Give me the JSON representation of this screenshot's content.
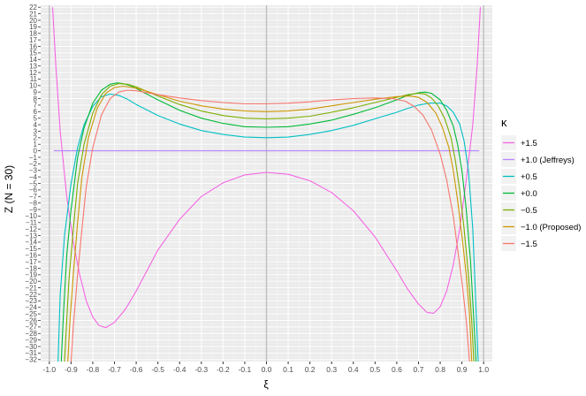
{
  "chart_data": {
    "type": "line",
    "xlabel": "ξ",
    "ylabel": "Z  (N = 30)",
    "xlim": [
      -1.04,
      1.04
    ],
    "ylim": [
      -32.3,
      22.3
    ],
    "xticks": [
      "-1.0",
      "-0.9",
      "-0.8",
      "-0.7",
      "-0.6",
      "-0.5",
      "-0.4",
      "-0.3",
      "-0.2",
      "-0.1",
      "0.0",
      "0.1",
      "0.2",
      "0.3",
      "0.4",
      "0.5",
      "0.6",
      "0.7",
      "0.8",
      "0.9",
      "1.0"
    ],
    "ytick_min": -32,
    "ytick_max": 22,
    "grid": true,
    "reference_lines": {
      "x": [
        -1.0,
        0.0,
        1.0
      ],
      "y": [
        0
      ]
    },
    "legend": {
      "title": "κ",
      "position": "right"
    },
    "series": [
      {
        "name": "+1.5",
        "color": "#F564E3",
        "points": [
          [
            -0.985,
            22
          ],
          [
            -0.97,
            13
          ],
          [
            -0.95,
            3
          ],
          [
            -0.92,
            -7
          ],
          [
            -0.89,
            -14
          ],
          [
            -0.86,
            -19
          ],
          [
            -0.83,
            -23
          ],
          [
            -0.8,
            -25.5
          ],
          [
            -0.77,
            -26.8
          ],
          [
            -0.74,
            -27.1
          ],
          [
            -0.7,
            -26.3
          ],
          [
            -0.65,
            -24.3
          ],
          [
            -0.6,
            -21.5
          ],
          [
            -0.5,
            -15.2
          ],
          [
            -0.4,
            -10.5
          ],
          [
            -0.3,
            -7.0
          ],
          [
            -0.2,
            -4.9
          ],
          [
            -0.1,
            -3.7
          ],
          [
            0.0,
            -3.3
          ],
          [
            0.1,
            -3.6
          ],
          [
            0.2,
            -4.6
          ],
          [
            0.3,
            -6.4
          ],
          [
            0.4,
            -9.2
          ],
          [
            0.5,
            -13.2
          ],
          [
            0.6,
            -18.4
          ],
          [
            0.65,
            -21.2
          ],
          [
            0.7,
            -23.5
          ],
          [
            0.74,
            -24.8
          ],
          [
            0.77,
            -24.9
          ],
          [
            0.8,
            -23.9
          ],
          [
            0.83,
            -21.5
          ],
          [
            0.86,
            -17.5
          ],
          [
            0.89,
            -12
          ],
          [
            0.92,
            -4.5
          ],
          [
            0.95,
            4
          ],
          [
            0.97,
            13
          ],
          [
            0.985,
            22
          ]
        ]
      },
      {
        "name": "+1.0 (Jeffreys)",
        "color": "#B983FF",
        "points": [
          [
            -0.98,
            0
          ],
          [
            0.98,
            0
          ]
        ]
      },
      {
        "name": "+0.5",
        "color": "#00BFC4",
        "points": [
          [
            -0.96,
            -32.3
          ],
          [
            -0.95,
            -22
          ],
          [
            -0.93,
            -13
          ],
          [
            -0.9,
            -5
          ],
          [
            -0.87,
            0.5
          ],
          [
            -0.84,
            4
          ],
          [
            -0.8,
            6.8
          ],
          [
            -0.76,
            8.3
          ],
          [
            -0.72,
            8.7
          ],
          [
            -0.68,
            8.5
          ],
          [
            -0.64,
            7.9
          ],
          [
            -0.6,
            7.1
          ],
          [
            -0.5,
            5.4
          ],
          [
            -0.4,
            4.1
          ],
          [
            -0.3,
            3.1
          ],
          [
            -0.2,
            2.5
          ],
          [
            -0.1,
            2.1
          ],
          [
            0.0,
            2.0
          ],
          [
            0.1,
            2.1
          ],
          [
            0.2,
            2.5
          ],
          [
            0.3,
            3.1
          ],
          [
            0.4,
            3.9
          ],
          [
            0.5,
            4.9
          ],
          [
            0.6,
            5.9
          ],
          [
            0.65,
            6.5
          ],
          [
            0.7,
            7.0
          ],
          [
            0.75,
            7.3
          ],
          [
            0.8,
            7.3
          ],
          [
            0.83,
            6.9
          ],
          [
            0.86,
            5.9
          ],
          [
            0.89,
            4.1
          ],
          [
            0.91,
            1.5
          ],
          [
            0.93,
            -3
          ],
          [
            0.95,
            -12
          ],
          [
            0.96,
            -20
          ],
          [
            0.975,
            -32.3
          ]
        ]
      },
      {
        "name": "+0.0",
        "color": "#00BA38",
        "points": [
          [
            -0.945,
            -32.3
          ],
          [
            -0.935,
            -25
          ],
          [
            -0.92,
            -16
          ],
          [
            -0.9,
            -9
          ],
          [
            -0.87,
            -1
          ],
          [
            -0.84,
            3.5
          ],
          [
            -0.8,
            7.3
          ],
          [
            -0.76,
            9.3
          ],
          [
            -0.72,
            10.2
          ],
          [
            -0.69,
            10.4
          ],
          [
            -0.66,
            10.3
          ],
          [
            -0.62,
            9.9
          ],
          [
            -0.58,
            9.2
          ],
          [
            -0.5,
            7.8
          ],
          [
            -0.4,
            6.2
          ],
          [
            -0.3,
            5.0
          ],
          [
            -0.2,
            4.2
          ],
          [
            -0.1,
            3.7
          ],
          [
            0.0,
            3.6
          ],
          [
            0.1,
            3.7
          ],
          [
            0.2,
            4.1
          ],
          [
            0.3,
            4.7
          ],
          [
            0.4,
            5.6
          ],
          [
            0.5,
            6.6
          ],
          [
            0.6,
            7.8
          ],
          [
            0.65,
            8.5
          ],
          [
            0.7,
            8.9
          ],
          [
            0.73,
            9.0
          ],
          [
            0.76,
            8.8
          ],
          [
            0.8,
            7.8
          ],
          [
            0.83,
            6.2
          ],
          [
            0.86,
            3.8
          ],
          [
            0.88,
            1
          ],
          [
            0.9,
            -3
          ],
          [
            0.92,
            -9
          ],
          [
            0.94,
            -17
          ],
          [
            0.955,
            -26
          ],
          [
            0.965,
            -32.3
          ]
        ]
      },
      {
        "name": "−0.5",
        "color": "#7CAE00",
        "points": [
          [
            -0.93,
            -32.3
          ],
          [
            -0.92,
            -26
          ],
          [
            -0.91,
            -20
          ],
          [
            -0.89,
            -12
          ],
          [
            -0.87,
            -5
          ],
          [
            -0.84,
            1
          ],
          [
            -0.8,
            5.8
          ],
          [
            -0.76,
            8.6
          ],
          [
            -0.72,
            9.9
          ],
          [
            -0.68,
            10.3
          ],
          [
            -0.64,
            10.2
          ],
          [
            -0.6,
            9.8
          ],
          [
            -0.5,
            8.4
          ],
          [
            -0.4,
            7.1
          ],
          [
            -0.3,
            6.1
          ],
          [
            -0.2,
            5.4
          ],
          [
            -0.1,
            5.0
          ],
          [
            0.0,
            4.9
          ],
          [
            0.1,
            5.0
          ],
          [
            0.2,
            5.3
          ],
          [
            0.3,
            5.9
          ],
          [
            0.4,
            6.6
          ],
          [
            0.5,
            7.4
          ],
          [
            0.6,
            8.2
          ],
          [
            0.65,
            8.6
          ],
          [
            0.7,
            8.8
          ],
          [
            0.73,
            8.7
          ],
          [
            0.76,
            8.1
          ],
          [
            0.79,
            6.9
          ],
          [
            0.82,
            5.0
          ],
          [
            0.85,
            2
          ],
          [
            0.87,
            -1.5
          ],
          [
            0.89,
            -6
          ],
          [
            0.91,
            -12
          ],
          [
            0.93,
            -19
          ],
          [
            0.945,
            -26
          ],
          [
            0.955,
            -32.3
          ]
        ]
      },
      {
        "name": "−1.0 (Proposed)",
        "color": "#CD9600",
        "points": [
          [
            -0.915,
            -32.3
          ],
          [
            -0.905,
            -26
          ],
          [
            -0.89,
            -19
          ],
          [
            -0.87,
            -11
          ],
          [
            -0.85,
            -4
          ],
          [
            -0.82,
            2
          ],
          [
            -0.78,
            6.5
          ],
          [
            -0.74,
            8.8
          ],
          [
            -0.7,
            9.7
          ],
          [
            -0.66,
            9.9
          ],
          [
            -0.6,
            9.6
          ],
          [
            -0.5,
            8.6
          ],
          [
            -0.4,
            7.6
          ],
          [
            -0.3,
            6.9
          ],
          [
            -0.2,
            6.4
          ],
          [
            -0.1,
            6.1
          ],
          [
            0.0,
            6.0
          ],
          [
            0.1,
            6.1
          ],
          [
            0.2,
            6.4
          ],
          [
            0.3,
            6.9
          ],
          [
            0.4,
            7.4
          ],
          [
            0.5,
            7.9
          ],
          [
            0.6,
            8.3
          ],
          [
            0.66,
            8.4
          ],
          [
            0.7,
            8.2
          ],
          [
            0.74,
            7.4
          ],
          [
            0.78,
            5.8
          ],
          [
            0.81,
            3.6
          ],
          [
            0.84,
            0.5
          ],
          [
            0.86,
            -3
          ],
          [
            0.88,
            -7.5
          ],
          [
            0.9,
            -13
          ],
          [
            0.92,
            -19
          ],
          [
            0.935,
            -25
          ],
          [
            0.945,
            -32.3
          ]
        ]
      },
      {
        "name": "−1.5",
        "color": "#F8766D",
        "points": [
          [
            -0.9,
            -32.3
          ],
          [
            -0.89,
            -27
          ],
          [
            -0.87,
            -19
          ],
          [
            -0.85,
            -12
          ],
          [
            -0.83,
            -5.5
          ],
          [
            -0.8,
            0.5
          ],
          [
            -0.76,
            5.5
          ],
          [
            -0.72,
            8.0
          ],
          [
            -0.68,
            9.0
          ],
          [
            -0.64,
            9.3
          ],
          [
            -0.6,
            9.2
          ],
          [
            -0.5,
            8.6
          ],
          [
            -0.4,
            8.1
          ],
          [
            -0.3,
            7.7
          ],
          [
            -0.2,
            7.4
          ],
          [
            -0.1,
            7.2
          ],
          [
            0.0,
            7.2
          ],
          [
            0.1,
            7.3
          ],
          [
            0.2,
            7.5
          ],
          [
            0.3,
            7.8
          ],
          [
            0.4,
            8.0
          ],
          [
            0.5,
            8.1
          ],
          [
            0.58,
            8.0
          ],
          [
            0.64,
            7.6
          ],
          [
            0.68,
            6.8
          ],
          [
            0.72,
            5.5
          ],
          [
            0.76,
            3.2
          ],
          [
            0.8,
            -0.5
          ],
          [
            0.83,
            -4.5
          ],
          [
            0.86,
            -10
          ],
          [
            0.88,
            -15
          ],
          [
            0.9,
            -20
          ],
          [
            0.92,
            -26
          ],
          [
            0.935,
            -32.3
          ]
        ]
      }
    ]
  }
}
